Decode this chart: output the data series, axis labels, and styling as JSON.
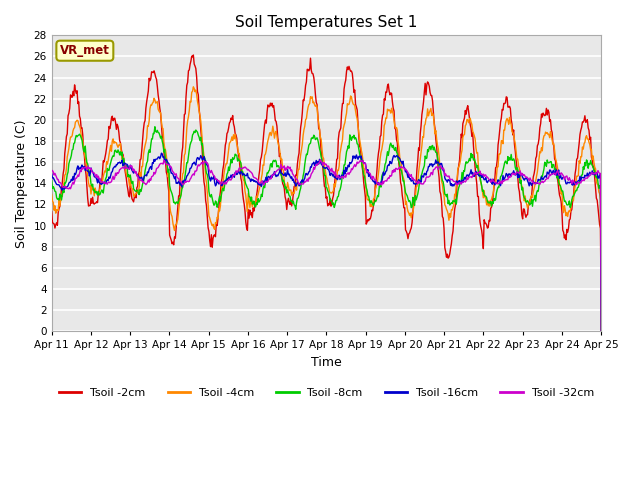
{
  "title": "Soil Temperatures Set 1",
  "xlabel": "Time",
  "ylabel": "Soil Temperature (C)",
  "ylim": [
    0,
    28
  ],
  "yticks": [
    0,
    2,
    4,
    6,
    8,
    10,
    12,
    14,
    16,
    18,
    20,
    22,
    24,
    26,
    28
  ],
  "fig_bg_color": "#ffffff",
  "plot_bg_color": "#e8e8e8",
  "grid_color": "#ffffff",
  "annotation_text": "VR_met",
  "annotation_bg": "#ffffcc",
  "annotation_border": "#999900",
  "series": [
    {
      "label": "Tsoil -2cm",
      "color": "#dd0000",
      "lw": 1.0
    },
    {
      "label": "Tsoil -4cm",
      "color": "#ff8800",
      "lw": 1.0
    },
    {
      "label": "Tsoil -8cm",
      "color": "#00cc00",
      "lw": 1.0
    },
    {
      "label": "Tsoil -16cm",
      "color": "#0000cc",
      "lw": 1.0
    },
    {
      "label": "Tsoil -32cm",
      "color": "#cc00cc",
      "lw": 1.0
    }
  ],
  "x_tick_labels": [
    "Apr 11",
    "Apr 12",
    "Apr 13",
    "Apr 14",
    "Apr 15",
    "Apr 16",
    "Apr 17",
    "Apr 18",
    "Apr 19",
    "Apr 20",
    "Apr 21",
    "Apr 22",
    "Apr 23",
    "Apr 24",
    "Apr 25"
  ]
}
